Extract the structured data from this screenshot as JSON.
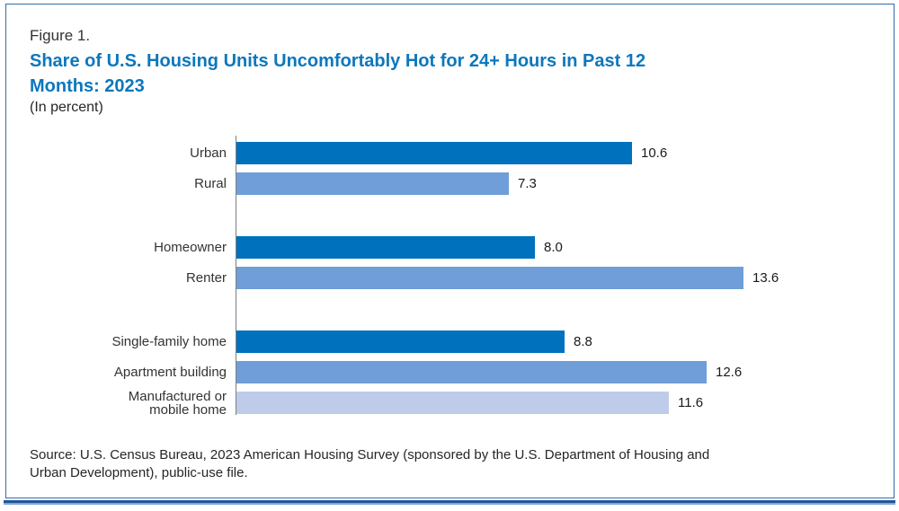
{
  "figure": {
    "label": "Figure 1.",
    "title_lines": [
      "Share of U.S. Housing Units Uncomfortably Hot for 24+ Hours in Past 12",
      "Months: 2023"
    ],
    "subtitle": "(In percent)",
    "source_lines": [
      "Source: U.S. Census Bureau, 2023 American Housing Survey (sponsored by the U.S. Department of Housing and",
      "Urban Development), public-use file."
    ]
  },
  "colors": {
    "title_blue": "#0C77BD",
    "bar_dark_blue": "#0071BC",
    "bar_medium_blue": "#6F9ED8",
    "bar_pale_blue": "#BECCE9",
    "box_border_blue": "#2F6DA8",
    "rule_dark_blue": "#24559B",
    "rule_light_blue": "#7FA9DA",
    "axis_gray": "#7F7F7F",
    "text_dark": "#333333"
  },
  "chart_data": {
    "type": "bar",
    "orientation": "horizontal",
    "title": "Share of U.S. Housing Units Uncomfortably Hot for 24+ Hours in Past 12 Months: 2023",
    "subtitle": "(In percent)",
    "value_unit": "percent",
    "xlim": [
      0,
      15
    ],
    "grid": false,
    "legend": false,
    "groups": [
      {
        "bars": [
          {
            "label": "Urban",
            "value": 10.6,
            "display": "10.6",
            "color": "#0071BC"
          },
          {
            "label": "Rural",
            "value": 7.3,
            "display": "7.3",
            "color": "#6F9ED8"
          }
        ]
      },
      {
        "bars": [
          {
            "label": "Homeowner",
            "value": 8.0,
            "display": "8.0",
            "color": "#0071BC"
          },
          {
            "label": "Renter",
            "value": 13.6,
            "display": "13.6",
            "color": "#6F9ED8"
          }
        ]
      },
      {
        "bars": [
          {
            "label": "Single-family home",
            "value": 8.8,
            "display": "8.8",
            "color": "#0071BC"
          },
          {
            "label": "Apartment building",
            "value": 12.6,
            "display": "12.6",
            "color": "#6F9ED8"
          },
          {
            "label": "Manufactured or mobile home",
            "label_lines": [
              "Manufactured or",
              "mobile home"
            ],
            "value": 11.6,
            "display": "11.6",
            "color": "#BECCE9"
          }
        ]
      }
    ]
  }
}
